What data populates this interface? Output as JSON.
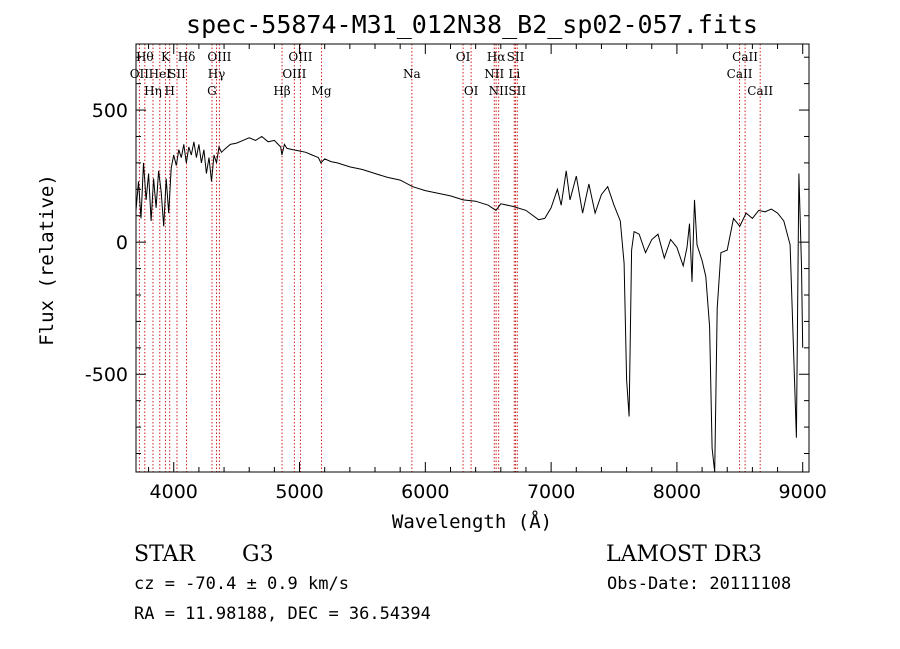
{
  "title": "spec-55874-M31_012N38_B2_sp02-057.fits",
  "chart_data": {
    "type": "line",
    "xlabel": "Wavelength (Å)",
    "ylabel": "Flux (relative)",
    "xlim": [
      3700,
      9050
    ],
    "ylim": [
      -870,
      750
    ],
    "x_ticks": [
      4000,
      5000,
      6000,
      7000,
      8000,
      9000
    ],
    "y_ticks": [
      500,
      0,
      -500
    ],
    "x_tick_labels": [
      "4000",
      "5000",
      "6000",
      "7000",
      "8000",
      "9000"
    ],
    "y_tick_labels": [
      "500",
      "0",
      "-500"
    ],
    "line_color": "#000000",
    "marker_color": "#d02020",
    "spectrum": [
      [
        3700,
        120
      ],
      [
        3720,
        230
      ],
      [
        3740,
        90
      ],
      [
        3760,
        300
      ],
      [
        3780,
        160
      ],
      [
        3800,
        260
      ],
      [
        3820,
        80
      ],
      [
        3840,
        240
      ],
      [
        3860,
        130
      ],
      [
        3880,
        270
      ],
      [
        3900,
        190
      ],
      [
        3920,
        60
      ],
      [
        3940,
        240
      ],
      [
        3960,
        110
      ],
      [
        3980,
        280
      ],
      [
        4000,
        330
      ],
      [
        4020,
        290
      ],
      [
        4040,
        350
      ],
      [
        4060,
        320
      ],
      [
        4080,
        370
      ],
      [
        4100,
        300
      ],
      [
        4120,
        360
      ],
      [
        4140,
        330
      ],
      [
        4160,
        380
      ],
      [
        4180,
        320
      ],
      [
        4200,
        370
      ],
      [
        4220,
        300
      ],
      [
        4240,
        350
      ],
      [
        4260,
        260
      ],
      [
        4280,
        320
      ],
      [
        4300,
        230
      ],
      [
        4320,
        330
      ],
      [
        4340,
        300
      ],
      [
        4360,
        360
      ],
      [
        4380,
        340
      ],
      [
        4400,
        350
      ],
      [
        4450,
        370
      ],
      [
        4500,
        375
      ],
      [
        4550,
        385
      ],
      [
        4600,
        395
      ],
      [
        4650,
        385
      ],
      [
        4700,
        400
      ],
      [
        4750,
        380
      ],
      [
        4800,
        385
      ],
      [
        4850,
        360
      ],
      [
        4860,
        330
      ],
      [
        4880,
        370
      ],
      [
        4900,
        355
      ],
      [
        4950,
        350
      ],
      [
        5000,
        345
      ],
      [
        5050,
        340
      ],
      [
        5100,
        330
      ],
      [
        5150,
        320
      ],
      [
        5170,
        300
      ],
      [
        5200,
        315
      ],
      [
        5250,
        305
      ],
      [
        5300,
        300
      ],
      [
        5400,
        285
      ],
      [
        5500,
        275
      ],
      [
        5600,
        260
      ],
      [
        5700,
        245
      ],
      [
        5800,
        235
      ],
      [
        5900,
        210
      ],
      [
        6000,
        195
      ],
      [
        6100,
        185
      ],
      [
        6200,
        175
      ],
      [
        6300,
        160
      ],
      [
        6400,
        155
      ],
      [
        6500,
        140
      ],
      [
        6562,
        120
      ],
      [
        6600,
        145
      ],
      [
        6700,
        135
      ],
      [
        6800,
        120
      ],
      [
        6900,
        85
      ],
      [
        6950,
        90
      ],
      [
        7000,
        130
      ],
      [
        7050,
        200
      ],
      [
        7080,
        140
      ],
      [
        7120,
        270
      ],
      [
        7150,
        160
      ],
      [
        7200,
        250
      ],
      [
        7250,
        110
      ],
      [
        7300,
        220
      ],
      [
        7350,
        110
      ],
      [
        7400,
        180
      ],
      [
        7450,
        210
      ],
      [
        7500,
        140
      ],
      [
        7550,
        80
      ],
      [
        7580,
        -80
      ],
      [
        7600,
        -520
      ],
      [
        7620,
        -660
      ],
      [
        7640,
        -30
      ],
      [
        7660,
        40
      ],
      [
        7700,
        30
      ],
      [
        7750,
        -40
      ],
      [
        7800,
        10
      ],
      [
        7850,
        30
      ],
      [
        7900,
        -60
      ],
      [
        7950,
        10
      ],
      [
        8000,
        -20
      ],
      [
        8050,
        -90
      ],
      [
        8080,
        -20
      ],
      [
        8100,
        70
      ],
      [
        8120,
        -150
      ],
      [
        8140,
        160
      ],
      [
        8160,
        -10
      ],
      [
        8200,
        -70
      ],
      [
        8230,
        -130
      ],
      [
        8260,
        -320
      ],
      [
        8280,
        -780
      ],
      [
        8300,
        -870
      ],
      [
        8320,
        -250
      ],
      [
        8350,
        -40
      ],
      [
        8400,
        -30
      ],
      [
        8450,
        90
      ],
      [
        8500,
        60
      ],
      [
        8550,
        110
      ],
      [
        8600,
        90
      ],
      [
        8650,
        120
      ],
      [
        8700,
        115
      ],
      [
        8750,
        125
      ],
      [
        8800,
        110
      ],
      [
        8850,
        80
      ],
      [
        8900,
        -10
      ],
      [
        8950,
        -740
      ],
      [
        8970,
        260
      ],
      [
        8990,
        -90
      ],
      [
        9000,
        -400
      ]
    ],
    "lines": [
      {
        "wave": 3727,
        "label": "OII",
        "row": 1
      },
      {
        "wave": 3770,
        "label": "Hθ",
        "row": 0
      },
      {
        "wave": 3835,
        "label": "Hη",
        "row": 2
      },
      {
        "wave": 3889,
        "label": "HeI",
        "row": 1
      },
      {
        "wave": 3934,
        "label": "K",
        "row": 0
      },
      {
        "wave": 3968,
        "label": "H",
        "row": 2
      },
      {
        "wave": 4026,
        "label": "SII",
        "row": 1
      },
      {
        "wave": 4102,
        "label": "Hδ",
        "row": 0
      },
      {
        "wave": 4304,
        "label": "G",
        "row": 2
      },
      {
        "wave": 4340,
        "label": "Hγ",
        "row": 1
      },
      {
        "wave": 4363,
        "label": "OIII",
        "row": 0
      },
      {
        "wave": 4861,
        "label": "Hβ",
        "row": 2
      },
      {
        "wave": 4959,
        "label": "OIII",
        "row": 1
      },
      {
        "wave": 5007,
        "label": "OIII",
        "row": 0
      },
      {
        "wave": 5175,
        "label": "Mg",
        "row": 2
      },
      {
        "wave": 5893,
        "label": "Na",
        "row": 1
      },
      {
        "wave": 6300,
        "label": "OI",
        "row": 0
      },
      {
        "wave": 6364,
        "label": "OI",
        "row": 2
      },
      {
        "wave": 6548,
        "label": "NII",
        "row": 1
      },
      {
        "wave": 6563,
        "label": "Hα",
        "row": 0
      },
      {
        "wave": 6583,
        "label": "NII",
        "row": 2
      },
      {
        "wave": 6707,
        "label": "Li",
        "row": 1
      },
      {
        "wave": 6717,
        "label": "SII",
        "row": 0
      },
      {
        "wave": 6731,
        "label": "SII",
        "row": 2
      },
      {
        "wave": 8498,
        "label": "CaII",
        "row": 1
      },
      {
        "wave": 8542,
        "label": "CaII",
        "row": 0
      },
      {
        "wave": 8662,
        "label": "CaII",
        "row": 2
      }
    ]
  },
  "info": {
    "class": "STAR",
    "subclass": "G3",
    "survey": "LAMOST DR3",
    "cz": "cz = -70.4 ± 0.9 km/s",
    "obs_date": "Obs-Date: 20111108",
    "radec": "RA =  11.98188, DEC =  36.54394"
  }
}
